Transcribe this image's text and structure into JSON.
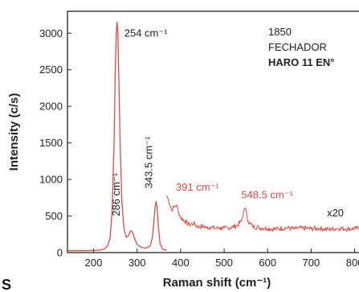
{
  "colors": {
    "spectrum": "#e8473f",
    "text": "#222222",
    "axis": "#222222"
  },
  "legend": {
    "lines": [
      "1850",
      "FECHADOR",
      "HARO 11 EN°"
    ]
  },
  "panel_letter": "S",
  "chart_data": {
    "type": "line",
    "title": "",
    "xlabel": "Raman shift  (cm⁻¹)",
    "ylabel": "Intensity (c/s)",
    "xlim": [
      140,
      810
    ],
    "ylim": [
      0,
      3300
    ],
    "xticks": [
      200,
      300,
      400,
      500,
      600,
      700,
      800
    ],
    "yticks": [
      0,
      500,
      1000,
      1500,
      2000,
      2500,
      3000
    ],
    "grid": false,
    "legend_position": "top-right",
    "series": [
      {
        "values_main": [
          [
            140,
            25
          ],
          [
            170,
            25
          ],
          [
            200,
            28
          ],
          [
            215,
            35
          ],
          [
            225,
            50
          ],
          [
            232,
            90
          ],
          [
            238,
            200
          ],
          [
            243,
            600
          ],
          [
            247,
            1500
          ],
          [
            250,
            2500
          ],
          [
            252,
            3000
          ],
          [
            254,
            3150
          ],
          [
            256,
            3000
          ],
          [
            258,
            2400
          ],
          [
            261,
            1500
          ],
          [
            265,
            700
          ],
          [
            270,
            330
          ],
          [
            275,
            210
          ],
          [
            280,
            230
          ],
          [
            284,
            280
          ],
          [
            286,
            300
          ],
          [
            289,
            280
          ],
          [
            294,
            200
          ],
          [
            300,
            110
          ],
          [
            310,
            70
          ],
          [
            320,
            60
          ],
          [
            330,
            90
          ],
          [
            335,
            200
          ],
          [
            338,
            380
          ],
          [
            341,
            600
          ],
          [
            343.5,
            700
          ],
          [
            346,
            620
          ],
          [
            349,
            350
          ],
          [
            353,
            120
          ],
          [
            358,
            55
          ],
          [
            363,
            35
          ],
          [
            368,
            40
          ]
        ],
        "values_x20": [
          [
            368,
            780
          ],
          [
            372,
            720
          ],
          [
            376,
            640
          ],
          [
            380,
            580
          ],
          [
            384,
            620
          ],
          [
            388,
            640
          ],
          [
            391,
            650
          ],
          [
            395,
            560
          ],
          [
            400,
            480
          ],
          [
            410,
            430
          ],
          [
            420,
            380
          ],
          [
            430,
            400
          ],
          [
            440,
            350
          ],
          [
            450,
            360
          ],
          [
            460,
            340
          ],
          [
            470,
            350
          ],
          [
            480,
            330
          ],
          [
            490,
            340
          ],
          [
            500,
            330
          ],
          [
            510,
            340
          ],
          [
            520,
            350
          ],
          [
            530,
            370
          ],
          [
            540,
            430
          ],
          [
            545,
            560
          ],
          [
            548.5,
            610
          ],
          [
            552,
            520
          ],
          [
            556,
            420
          ],
          [
            565,
            360
          ],
          [
            580,
            340
          ],
          [
            600,
            330
          ],
          [
            620,
            320
          ],
          [
            640,
            340
          ],
          [
            660,
            325
          ],
          [
            680,
            335
          ],
          [
            700,
            325
          ],
          [
            720,
            330
          ],
          [
            740,
            315
          ],
          [
            760,
            330
          ],
          [
            780,
            325
          ],
          [
            810,
            330
          ]
        ]
      }
    ],
    "annotations": [
      {
        "text": "254 cm⁻¹",
        "x": 254,
        "y": 3150,
        "color": "text"
      },
      {
        "text": "286 cm⁻¹",
        "x": 286,
        "y": 300,
        "rotated": true,
        "color": "text"
      },
      {
        "text": "343.5 cm⁻¹",
        "x": 343.5,
        "y": 700,
        "rotated": true,
        "color": "text"
      },
      {
        "text": "391 cm⁻¹",
        "x": 391,
        "y": 650,
        "color": "spectrum"
      },
      {
        "text": "548.5 cm⁻¹",
        "x": 548.5,
        "y": 610,
        "color": "spectrum"
      },
      {
        "text": "x20",
        "x": 740,
        "y": 330,
        "color": "text"
      }
    ]
  }
}
